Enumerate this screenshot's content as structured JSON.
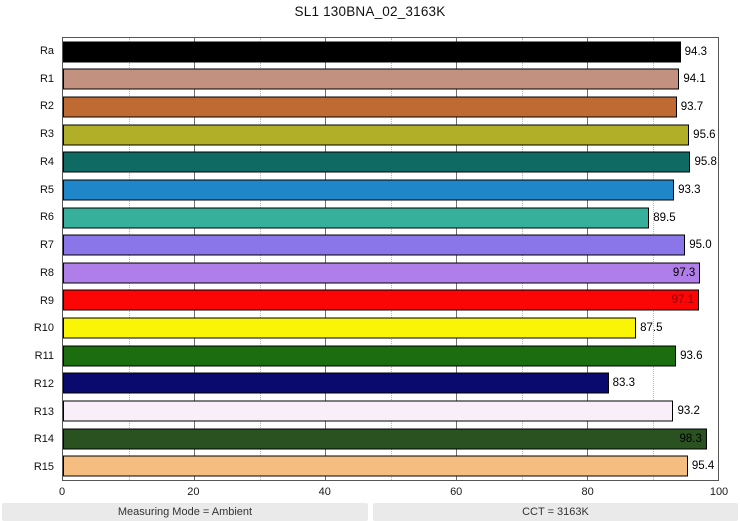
{
  "title": "SL1 130BNA_02_3163K",
  "footer": {
    "left": "Measuring Mode = Ambient",
    "right": "CCT = 3163K"
  },
  "chart_data": {
    "type": "bar",
    "orientation": "horizontal",
    "title": "SL1 130BNA_02_3163K",
    "categories": [
      "Ra",
      "R1",
      "R2",
      "R3",
      "R4",
      "R5",
      "R6",
      "R7",
      "R8",
      "R9",
      "R10",
      "R11",
      "R12",
      "R13",
      "R14",
      "R15"
    ],
    "values": [
      94.3,
      94.1,
      93.7,
      95.6,
      95.8,
      93.3,
      89.5,
      95.0,
      97.3,
      97.1,
      87.5,
      93.6,
      83.3,
      93.2,
      98.3,
      95.4
    ],
    "value_labels": [
      "94.3",
      "94.1",
      "93.7",
      "95.6",
      "95.8",
      "93.3",
      "89.5",
      "95.0",
      "97.3",
      "97.1",
      "87.5",
      "93.6",
      "83.3",
      "93.2",
      "98.3",
      "95.4"
    ],
    "bar_colors": [
      "#000000",
      "#C2917F",
      "#C06A33",
      "#B1AE28",
      "#0E6A63",
      "#1F87C9",
      "#36B09A",
      "#8A76E8",
      "#B07EE8",
      "#FB0505",
      "#FAF507",
      "#1B6E0D",
      "#0A0A6E",
      "#FAEFF8",
      "#2A5220",
      "#F5BE80"
    ],
    "value_label_inside": [
      false,
      false,
      false,
      false,
      false,
      false,
      false,
      false,
      true,
      true,
      false,
      false,
      false,
      false,
      true,
      false
    ],
    "value_label_colors": [
      "#000000",
      "#000000",
      "#000000",
      "#000000",
      "#000000",
      "#000000",
      "#000000",
      "#000000",
      "#000000",
      "#8B0000",
      "#000000",
      "#000000",
      "#000000",
      "#000000",
      "#000000",
      "#000000"
    ],
    "xlabel": "",
    "ylabel": "",
    "xlim": [
      0,
      100
    ],
    "x_ticks": [
      0,
      20,
      40,
      60,
      80,
      100
    ],
    "major_gridlines": [
      20,
      40,
      60,
      80
    ],
    "minor_gridlines": [
      10,
      30,
      50,
      70,
      90
    ],
    "grid": true,
    "legend": false
  }
}
